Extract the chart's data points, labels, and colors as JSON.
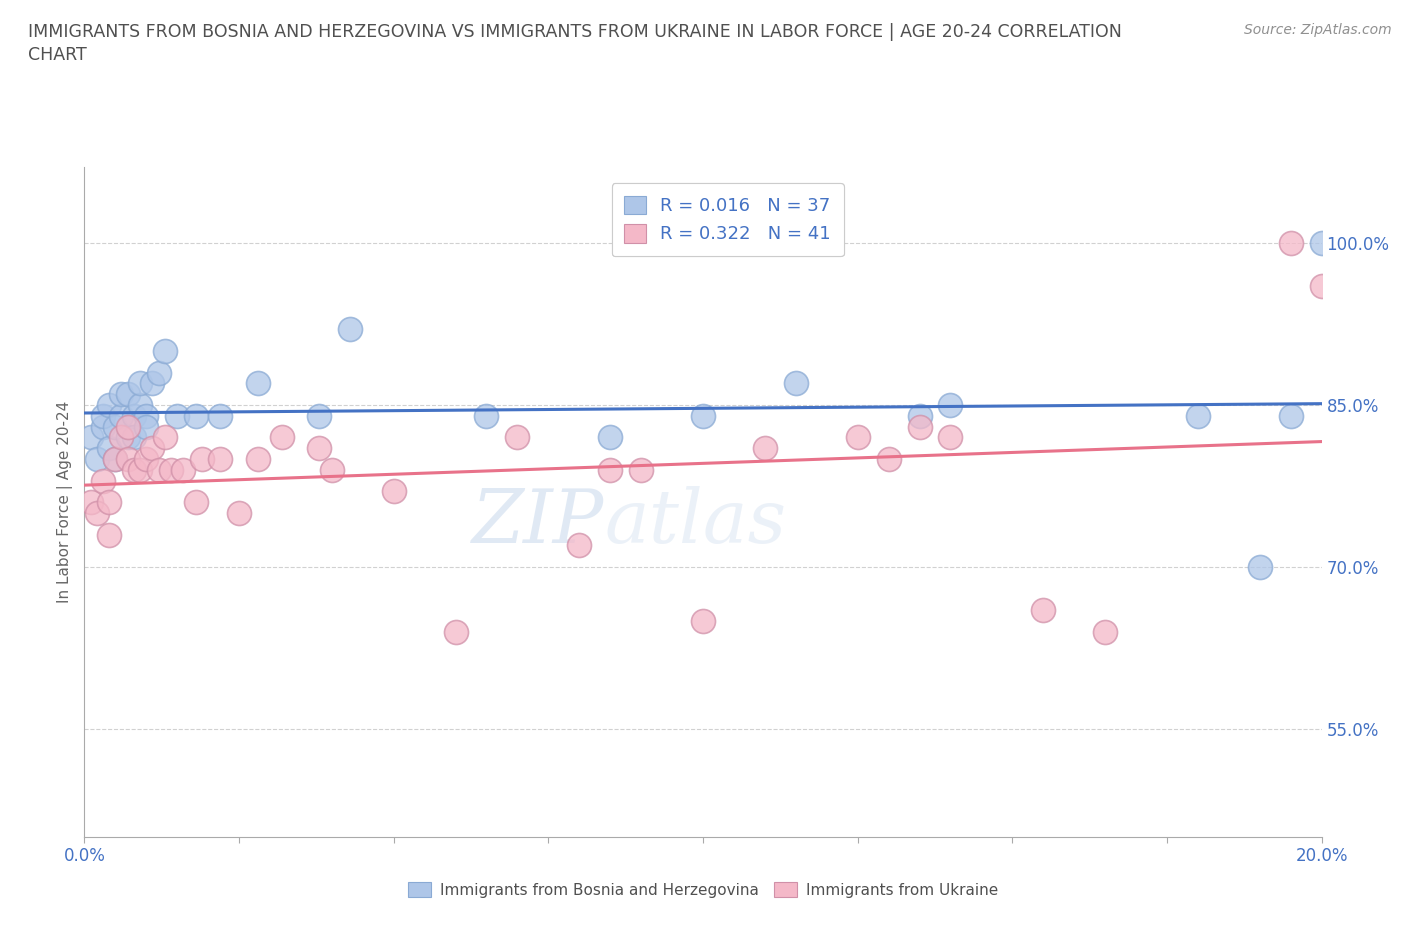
{
  "title_line1": "IMMIGRANTS FROM BOSNIA AND HERZEGOVINA VS IMMIGRANTS FROM UKRAINE IN LABOR FORCE | AGE 20-24 CORRELATION",
  "title_line2": "CHART",
  "source": "Source: ZipAtlas.com",
  "ylabel": "In Labor Force | Age 20-24",
  "xmin": 0.0,
  "xmax": 0.2,
  "ymin": 0.45,
  "ymax": 1.07,
  "yticks": [
    0.55,
    0.7,
    0.85,
    1.0
  ],
  "ytick_labels": [
    "55.0%",
    "70.0%",
    "85.0%",
    "100.0%"
  ],
  "xticks": [
    0.0,
    0.025,
    0.05,
    0.075,
    0.1,
    0.125,
    0.15,
    0.175,
    0.2
  ],
  "legend_entries": [
    {
      "label": "Immigrants from Bosnia and Herzegovina",
      "color": "#aec6e8",
      "R": 0.016,
      "N": 37
    },
    {
      "label": "Immigrants from Ukraine",
      "color": "#f4b8c8",
      "R": 0.322,
      "N": 41
    }
  ],
  "watermark_zip": "ZIP",
  "watermark_atlas": "atlas",
  "bosnia_color": "#aec6e8",
  "ukraine_color": "#f4b8c8",
  "bosnia_line_color": "#4472c4",
  "ukraine_line_color": "#e8728a",
  "grid_color": "#cccccc",
  "background_color": "#ffffff",
  "title_color": "#505050",
  "source_color": "#909090",
  "axis_label_color": "#4472c4",
  "legend_text_color": "#4472c4",
  "bosnia_x": [
    0.001,
    0.002,
    0.003,
    0.003,
    0.004,
    0.004,
    0.005,
    0.005,
    0.006,
    0.006,
    0.007,
    0.007,
    0.008,
    0.008,
    0.009,
    0.009,
    0.01,
    0.01,
    0.011,
    0.012,
    0.013,
    0.015,
    0.018,
    0.022,
    0.028,
    0.038,
    0.043,
    0.065,
    0.085,
    0.1,
    0.115,
    0.135,
    0.14,
    0.18,
    0.19,
    0.195,
    0.2
  ],
  "bosnia_y": [
    0.82,
    0.8,
    0.83,
    0.84,
    0.81,
    0.85,
    0.83,
    0.8,
    0.84,
    0.86,
    0.82,
    0.86,
    0.84,
    0.82,
    0.85,
    0.87,
    0.84,
    0.83,
    0.87,
    0.88,
    0.9,
    0.84,
    0.84,
    0.84,
    0.87,
    0.84,
    0.92,
    0.84,
    0.82,
    0.84,
    0.87,
    0.84,
    0.85,
    0.84,
    0.7,
    0.84,
    1.0
  ],
  "ukraine_x": [
    0.001,
    0.002,
    0.003,
    0.004,
    0.004,
    0.005,
    0.006,
    0.007,
    0.007,
    0.008,
    0.009,
    0.01,
    0.011,
    0.012,
    0.013,
    0.014,
    0.016,
    0.018,
    0.019,
    0.022,
    0.025,
    0.028,
    0.032,
    0.038,
    0.04,
    0.05,
    0.06,
    0.07,
    0.08,
    0.085,
    0.09,
    0.1,
    0.11,
    0.125,
    0.13,
    0.135,
    0.14,
    0.155,
    0.165,
    0.195,
    0.2
  ],
  "ukraine_y": [
    0.76,
    0.75,
    0.78,
    0.73,
    0.76,
    0.8,
    0.82,
    0.8,
    0.83,
    0.79,
    0.79,
    0.8,
    0.81,
    0.79,
    0.82,
    0.79,
    0.79,
    0.76,
    0.8,
    0.8,
    0.75,
    0.8,
    0.82,
    0.81,
    0.79,
    0.77,
    0.64,
    0.82,
    0.72,
    0.79,
    0.79,
    0.65,
    0.81,
    0.82,
    0.8,
    0.83,
    0.82,
    0.66,
    0.64,
    1.0,
    0.96
  ]
}
